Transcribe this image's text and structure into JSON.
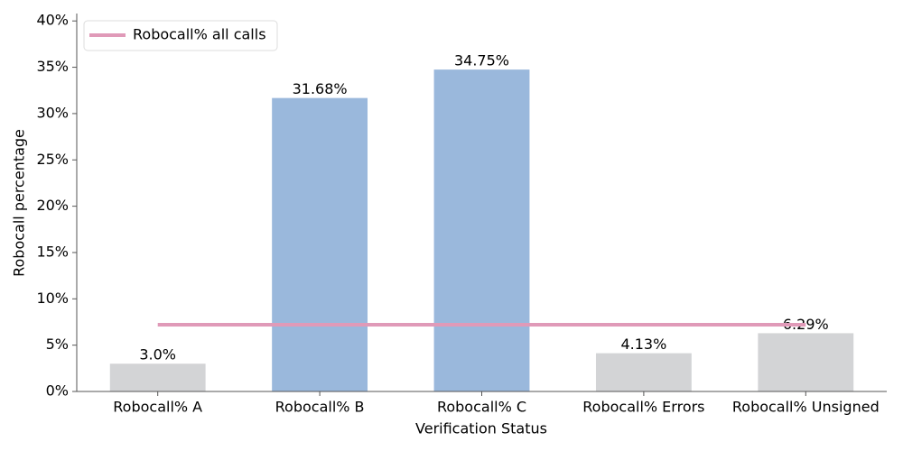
{
  "chart_data": {
    "type": "bar",
    "x_label": "Verification Status",
    "y_label": "Robocall percentage",
    "categories": [
      "Robocall% A",
      "Robocall% B",
      "Robocall% C",
      "Robocall% Errors",
      "Robocall% Unsigned"
    ],
    "series": [
      {
        "type": "bar",
        "values": [
          3.0,
          31.68,
          34.75,
          4.13,
          6.29
        ],
        "value_labels": [
          "3.0%",
          "31.68%",
          "34.75%",
          "4.13%",
          "6.29%"
        ],
        "colors": [
          "#d3d4d6",
          "#9ab8dc",
          "#9ab8dc",
          "#d3d4d6",
          "#d3d4d6"
        ]
      },
      {
        "type": "line",
        "name": "Robocall% all calls",
        "color": "#e09ab8",
        "values": [
          7.2,
          7.2,
          7.2,
          7.2,
          7.2
        ]
      }
    ],
    "ylim": [
      0,
      40.8
    ],
    "yticks": [
      {
        "value": 0,
        "label": "0%"
      },
      {
        "value": 5,
        "label": "5%"
      },
      {
        "value": 10,
        "label": "10%"
      },
      {
        "value": 15,
        "label": "15%"
      },
      {
        "value": 20,
        "label": "20%"
      },
      {
        "value": 25,
        "label": "25%"
      },
      {
        "value": 30,
        "label": "30%"
      },
      {
        "value": 35,
        "label": "35%"
      },
      {
        "value": 40,
        "label": "40%"
      }
    ],
    "legend": "upper left"
  }
}
